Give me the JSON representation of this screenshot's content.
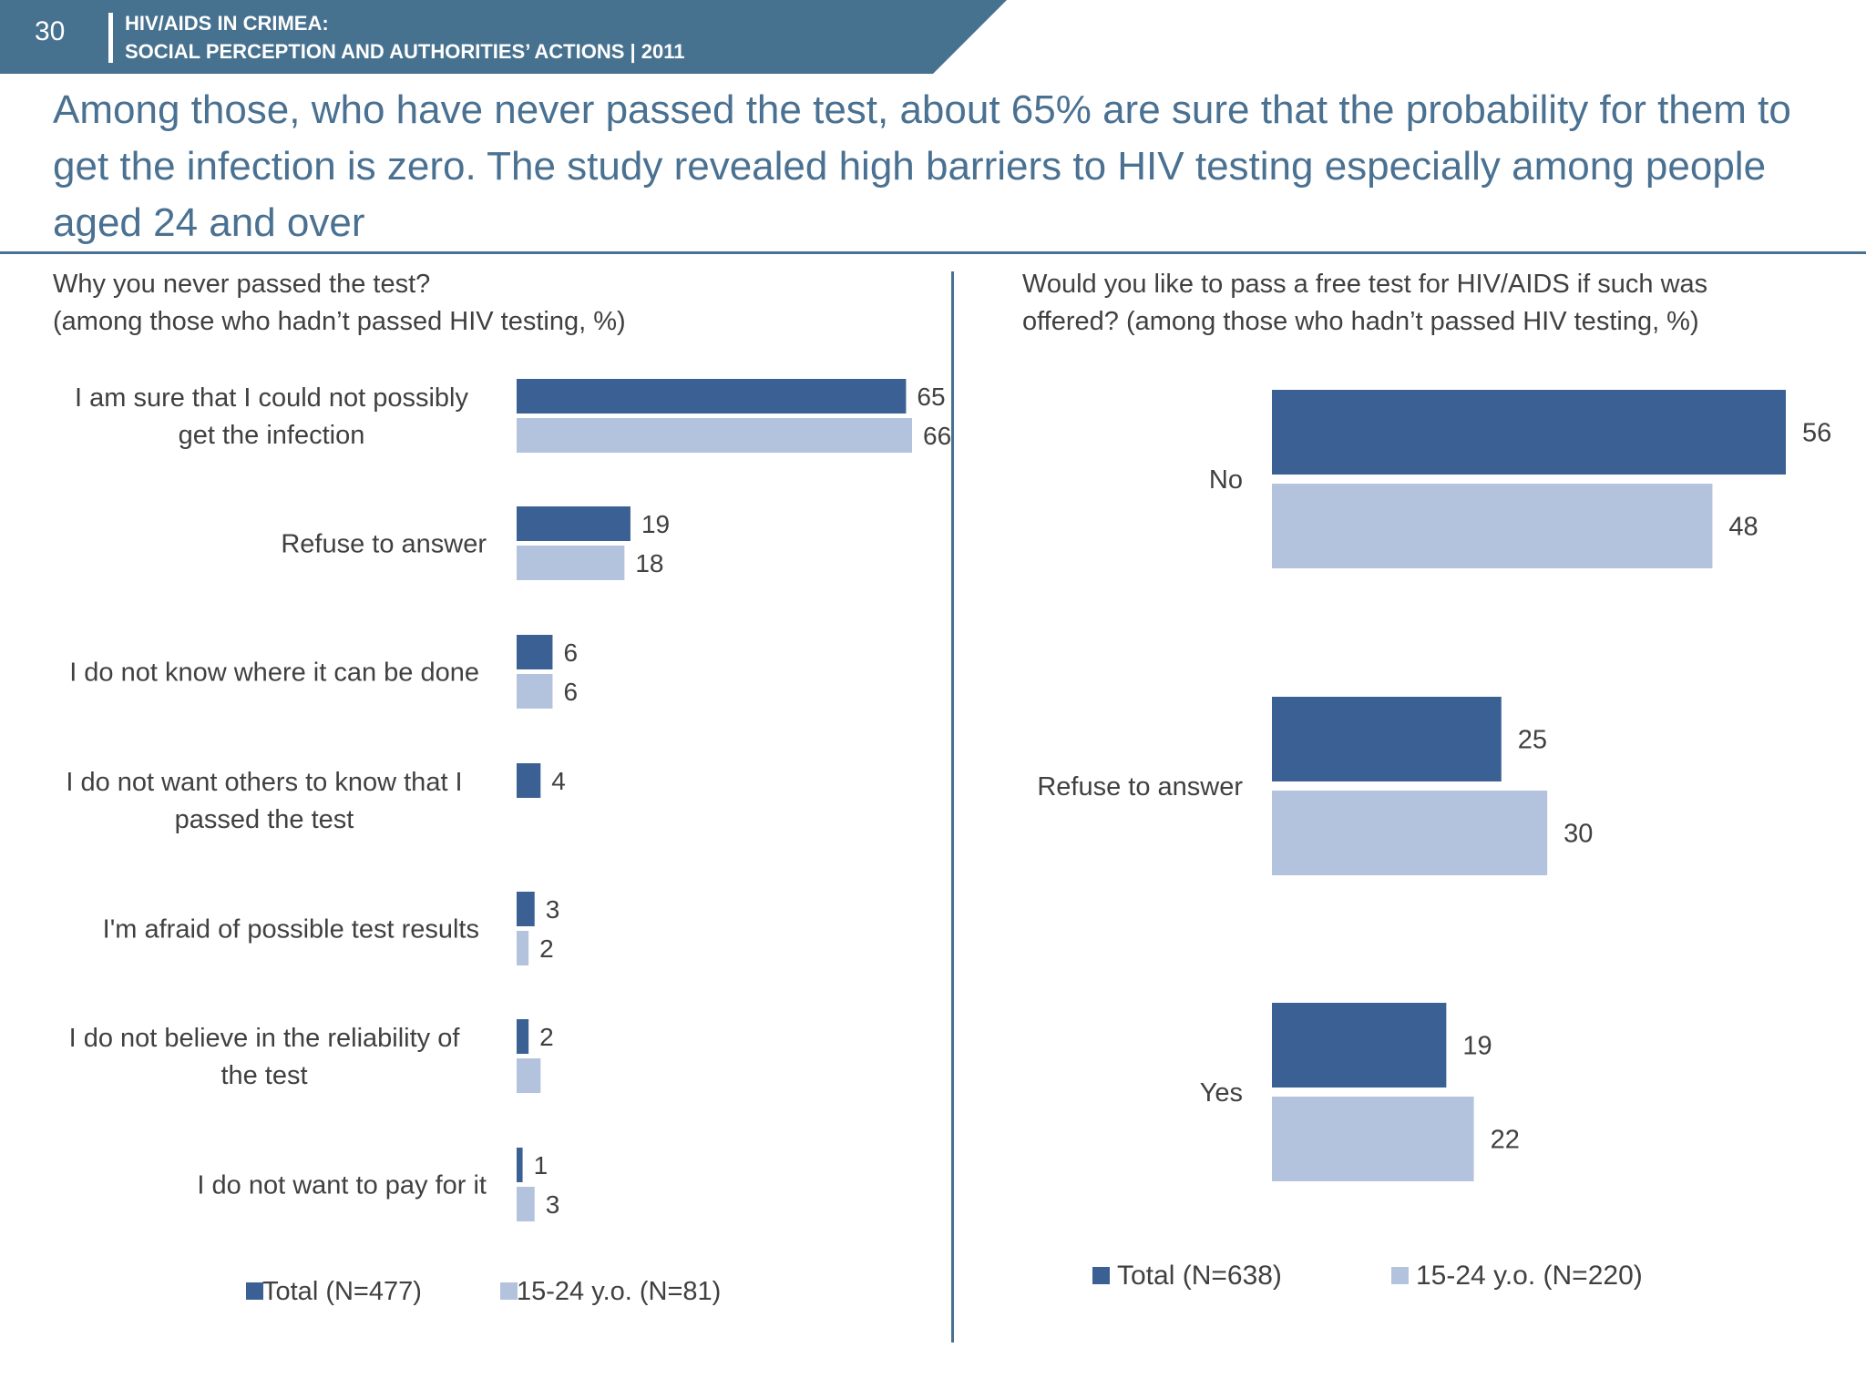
{
  "header": {
    "page_number": "30",
    "line1": "HIV/AIDS IN CRIMEA:",
    "line2": "SOCIAL PERCEPTION AND AUTHORITIES’ ACTIONS  |  2011"
  },
  "headline": "Among those, who have never passed the test, about 65% are sure that the probability for them to get the infection is zero. The study revealed high barriers to HIV testing especially among people aged 24 and over",
  "colors": {
    "header_band": "#46718f",
    "headline": "#4a7191",
    "total_series": "#3b6194",
    "youth_series": "#b4c3dd",
    "label_text": "#404040"
  },
  "chart_data": [
    {
      "type": "bar",
      "orientation": "horizontal",
      "title": "Why  you never passed the test? (among those who hadn’t passed HIV testing, %)",
      "title_lines": [
        "Why  you never passed the test?",
        "(among those who hadn’t passed HIV testing, %)"
      ],
      "categories": [
        [
          "I am sure that I could not possibly",
          "get the infection"
        ],
        [
          "Refuse to answer"
        ],
        [
          "I do not know where it can be done"
        ],
        [
          "I do not want others to know that I",
          "passed the test"
        ],
        [
          "I'm afraid of possible test results"
        ],
        [
          "I do not believe in the reliability of",
          "the test"
        ],
        [
          "I do not want to pay for it"
        ]
      ],
      "series": [
        {
          "name": "Total (N=477)",
          "values": [
            65,
            19,
            6,
            4,
            3,
            2,
            1
          ],
          "labels": [
            "65",
            "19",
            "6",
            "4",
            "3",
            "2",
            "1"
          ]
        },
        {
          "name": "15-24 y.o. (N=81)",
          "values": [
            66,
            18,
            6,
            0,
            2,
            4,
            3
          ],
          "labels": [
            "66",
            "18",
            "6",
            "",
            "2",
            "",
            "3"
          ]
        }
      ],
      "legend": "bottom",
      "grid": false
    },
    {
      "type": "bar",
      "orientation": "horizontal",
      "title": "Would you like to pass a free test for HIV/AIDS if such was offered? (among those who hadn’t passed HIV testing, %)",
      "title_lines": [
        "Would you like to pass a free test for HIV/AIDS if such was",
        "offered? (among those who hadn’t passed HIV testing, %)"
      ],
      "categories": [
        [
          "No"
        ],
        [
          "Refuse to answer"
        ],
        [
          "Yes"
        ]
      ],
      "series": [
        {
          "name": "Total (N=638)",
          "values": [
            56,
            25,
            19
          ],
          "labels": [
            "56",
            "25",
            "19"
          ]
        },
        {
          "name": "15-24 y.o. (N=220)",
          "values": [
            48,
            30,
            22
          ],
          "labels": [
            "48",
            "30",
            "22"
          ]
        }
      ],
      "legend": "bottom",
      "grid": false
    }
  ]
}
